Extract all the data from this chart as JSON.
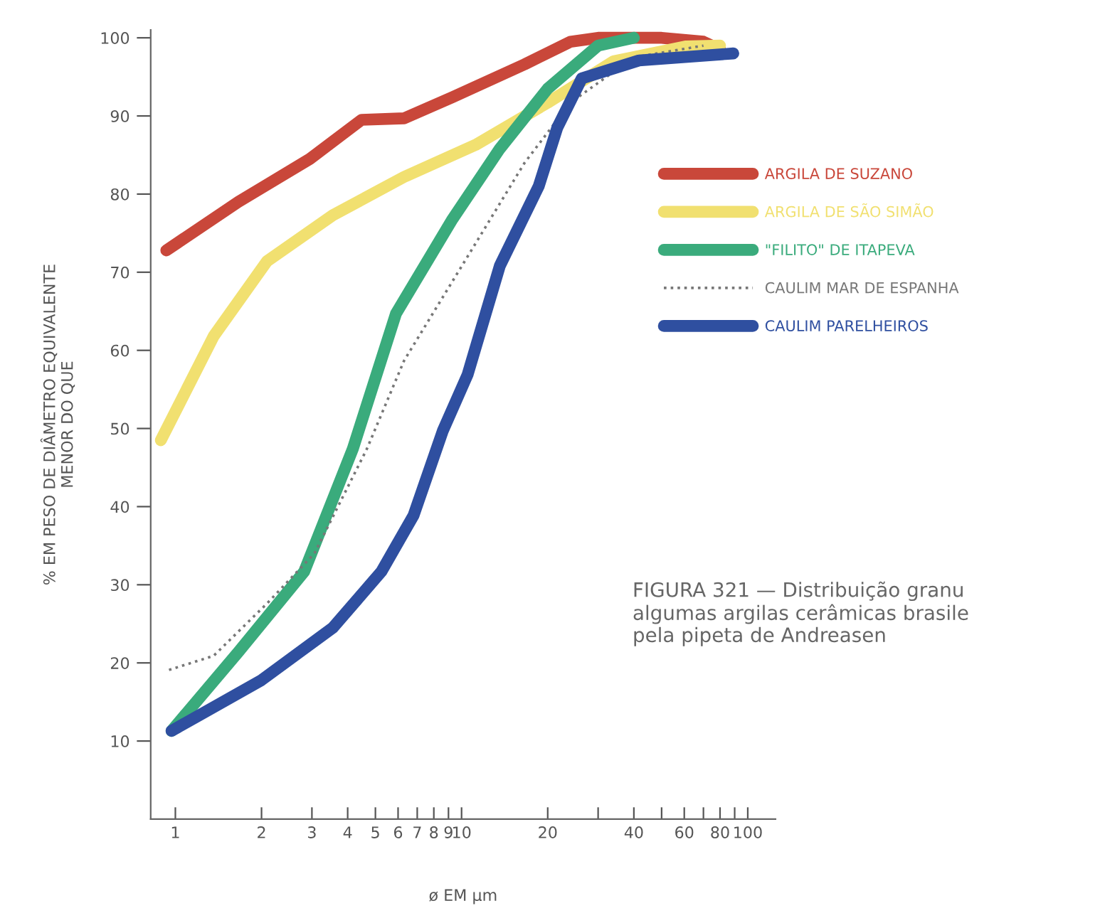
{
  "chart_data": {
    "type": "line",
    "xlabel": "ø EM μm",
    "ylabel": "% EM PESO DE DIÂMETRO EQUIVALENTE\nMENOR DO QUE",
    "log": "x",
    "xlim": [
      0.82,
      125
    ],
    "ylim": [
      0,
      101
    ],
    "xticks": [
      1,
      2,
      3,
      4,
      5,
      6,
      7,
      8,
      9,
      10,
      20,
      {
        "value": 30,
        "label": null
      },
      40,
      {
        "value": 50,
        "label": null
      },
      60,
      {
        "value": 70,
        "label": null
      },
      80,
      {
        "value": 90,
        "label": null
      },
      100
    ],
    "yticks": [
      10,
      20,
      30,
      40,
      50,
      60,
      70,
      80,
      90,
      100
    ],
    "legend": "right",
    "grid": false,
    "annotations": [
      "FIGURA 321 — Distribuição granu\nalgumas argilas cerâmicas brasile\npela pipeta de Andreasen"
    ],
    "series": [
      {
        "name": "ARGILA DE SUZANO",
        "color": "#c9473a",
        "line_style": "solid",
        "x": [
          0.93,
          1.66,
          2.95,
          4.47,
          6.3,
          9.3,
          16.6,
          24,
          30,
          50,
          70,
          80
        ],
        "values": [
          72.8,
          79,
          84.5,
          89.5,
          89.7,
          92.4,
          96.6,
          99.5,
          100,
          100,
          99.5,
          98.5
        ]
      },
      {
        "name": "ARGILA DE SÃO SIMÃO",
        "color": "#f1e070",
        "line_style": "solid",
        "x": [
          0.89,
          1.36,
          2.09,
          3.55,
          6.3,
          11.2,
          20,
          34,
          61,
          80
        ],
        "values": [
          48.5,
          61.8,
          71.4,
          77.3,
          82.2,
          86.3,
          91.7,
          97,
          98.9,
          99
        ]
      },
      {
        "name": "\"FILITO\" DE ITAPEVA",
        "color": "#3aab7c",
        "line_style": "solid",
        "x": [
          0.97,
          1.66,
          2.82,
          4.17,
          5.9,
          9.3,
          13.6,
          20,
          30,
          40
        ],
        "values": [
          11.3,
          21.4,
          31.7,
          47.4,
          64.7,
          76.8,
          85.8,
          93.5,
          99,
          100
        ]
      },
      {
        "name": "CAULIM MAR DE ESPANHA",
        "color": "#777777",
        "line_style": "dotted",
        "x": [
          0.95,
          1.36,
          2.09,
          3.06,
          4.67,
          6.3,
          11.2,
          16.6,
          24,
          40,
          70
        ],
        "values": [
          19.1,
          20.9,
          27.6,
          34,
          47.4,
          58.7,
          73.7,
          84,
          91.7,
          97.5,
          99
        ]
      },
      {
        "name": "CAULIM PARELHEIROS",
        "color": "#2f4fa0",
        "line_style": "solid",
        "x": [
          0.97,
          2.0,
          3.55,
          5.25,
          6.8,
          8.6,
          10.5,
          13.6,
          18.6,
          21.6,
          26.3,
          41.7,
          89
        ],
        "values": [
          11.3,
          17.8,
          24.5,
          31.7,
          38.9,
          49.7,
          56.9,
          70.8,
          81,
          88.5,
          94.8,
          97.1,
          98
        ]
      }
    ]
  }
}
